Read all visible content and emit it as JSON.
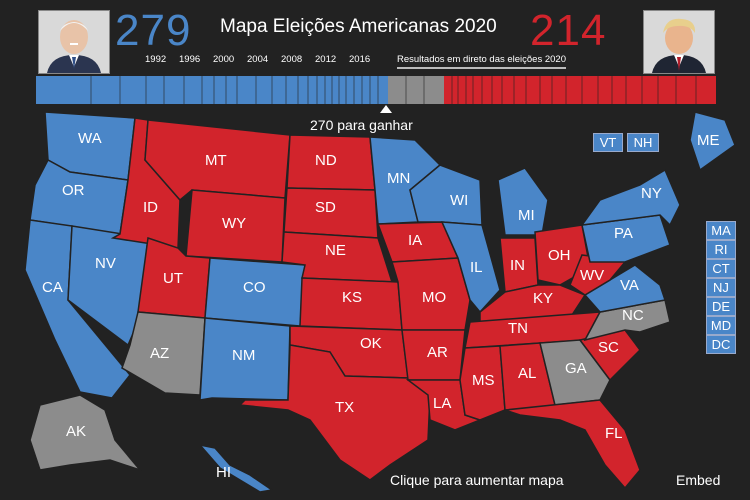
{
  "header": {
    "title": "Mapa Eleições Americanas 2020",
    "dem_score": "279",
    "rep_score": "214",
    "years": [
      "1992",
      "1996",
      "2000",
      "2004",
      "2008",
      "2012",
      "2016"
    ],
    "live_label": "Resultados em direto das eleições 2020",
    "to_win_label": "270 para ganhar"
  },
  "colors": {
    "dem": "#4a86c8",
    "rep": "#d2242c",
    "undecided": "#8c8c8c",
    "background": "#222222"
  },
  "states": [
    {
      "abbr": "WA",
      "winner": "dem"
    },
    {
      "abbr": "OR",
      "winner": "dem"
    },
    {
      "abbr": "CA",
      "winner": "dem"
    },
    {
      "abbr": "NV",
      "winner": "dem"
    },
    {
      "abbr": "ID",
      "winner": "rep"
    },
    {
      "abbr": "MT",
      "winner": "rep"
    },
    {
      "abbr": "WY",
      "winner": "rep"
    },
    {
      "abbr": "UT",
      "winner": "rep"
    },
    {
      "abbr": "CO",
      "winner": "dem"
    },
    {
      "abbr": "AZ",
      "winner": "undecided"
    },
    {
      "abbr": "NM",
      "winner": "dem"
    },
    {
      "abbr": "ND",
      "winner": "rep"
    },
    {
      "abbr": "SD",
      "winner": "rep"
    },
    {
      "abbr": "NE",
      "winner": "rep"
    },
    {
      "abbr": "KS",
      "winner": "rep"
    },
    {
      "abbr": "OK",
      "winner": "rep"
    },
    {
      "abbr": "TX",
      "winner": "rep"
    },
    {
      "abbr": "MN",
      "winner": "dem"
    },
    {
      "abbr": "IA",
      "winner": "rep"
    },
    {
      "abbr": "MO",
      "winner": "rep"
    },
    {
      "abbr": "AR",
      "winner": "rep"
    },
    {
      "abbr": "LA",
      "winner": "rep"
    },
    {
      "abbr": "WI",
      "winner": "dem"
    },
    {
      "abbr": "IL",
      "winner": "dem"
    },
    {
      "abbr": "MI",
      "winner": "dem"
    },
    {
      "abbr": "IN",
      "winner": "rep"
    },
    {
      "abbr": "OH",
      "winner": "rep"
    },
    {
      "abbr": "KY",
      "winner": "rep"
    },
    {
      "abbr": "TN",
      "winner": "rep"
    },
    {
      "abbr": "MS",
      "winner": "rep"
    },
    {
      "abbr": "AL",
      "winner": "rep"
    },
    {
      "abbr": "GA",
      "winner": "undecided"
    },
    {
      "abbr": "FL",
      "winner": "rep"
    },
    {
      "abbr": "SC",
      "winner": "rep"
    },
    {
      "abbr": "NC",
      "winner": "undecided"
    },
    {
      "abbr": "VA",
      "winner": "dem"
    },
    {
      "abbr": "WV",
      "winner": "rep"
    },
    {
      "abbr": "PA",
      "winner": "dem"
    },
    {
      "abbr": "NY",
      "winner": "dem"
    },
    {
      "abbr": "ME",
      "winner": "dem"
    },
    {
      "abbr": "VT",
      "winner": "dem"
    },
    {
      "abbr": "NH",
      "winner": "dem"
    },
    {
      "abbr": "MA",
      "winner": "dem"
    },
    {
      "abbr": "RI",
      "winner": "dem"
    },
    {
      "abbr": "CT",
      "winner": "dem"
    },
    {
      "abbr": "NJ",
      "winner": "dem"
    },
    {
      "abbr": "DE",
      "winner": "dem"
    },
    {
      "abbr": "MD",
      "winner": "dem"
    },
    {
      "abbr": "DC",
      "winner": "dem"
    },
    {
      "abbr": "AK",
      "winner": "undecided"
    },
    {
      "abbr": "HI",
      "winner": "dem"
    }
  ],
  "footer": {
    "enlarge_label": "Clique para aumentar mapa",
    "embed_label": "Embed"
  }
}
